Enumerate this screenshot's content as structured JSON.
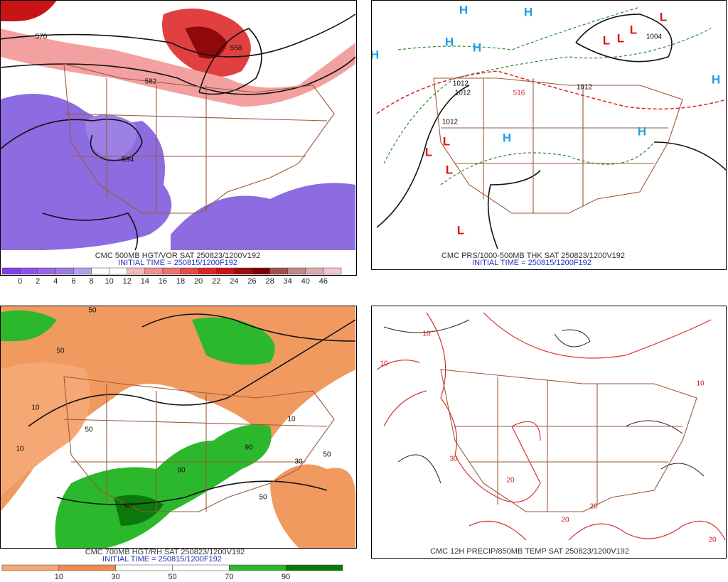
{
  "panels": [
    {
      "caption": "CMC 500MB HGT/VOR SAT 250823/1200V192",
      "initial_time": "INITIAL TIME = 250815/1200F192",
      "labels": [
        "570",
        "582",
        "594",
        "558"
      ],
      "colorbar": {
        "colors": [
          "#8a3cf0",
          "#9050ee",
          "#9866e4",
          "#a07ce0",
          "#b4a0e8",
          "#ffffff",
          "#ffffff",
          "#f6b8b8",
          "#f09090",
          "#ee7070",
          "#e84848",
          "#e02424",
          "#c81414",
          "#a00a0a",
          "#800000",
          "#a05050",
          "#c08888",
          "#dcaab0",
          "#f4c4d0"
        ],
        "labels": [
          "0",
          "2",
          "4",
          "6",
          "8",
          "10",
          "12",
          "14",
          "16",
          "18",
          "20",
          "22",
          "24",
          "26",
          "28",
          "34",
          "40",
          "46"
        ]
      }
    },
    {
      "caption": "CMC PRS/1000-500MB THK SAT 250823/1200V192",
      "initial_time": "INITIAL TIME = 250815/1200F192",
      "labels": [
        "H",
        "H",
        "H",
        "H",
        "H",
        "H",
        "H",
        "H",
        "L",
        "L",
        "L",
        "L",
        "L",
        "L",
        "L",
        "L",
        "1012",
        "1012",
        "1012",
        "1004",
        "1012",
        "516"
      ]
    },
    {
      "caption": "CMC 700MB HGT/RH SAT 250823/1200V192",
      "initial_time": "INITIAL TIME = 250815/1200F192",
      "labels": [
        "50",
        "50",
        "10",
        "10",
        "50",
        "90",
        "90",
        "50",
        "10",
        "50",
        "30",
        "90"
      ],
      "colorbar": {
        "colors": [
          "#f5a873",
          "#f08a4c",
          "#ffffff",
          "#ffffff",
          "#2cb82c",
          "#0a780a"
        ],
        "labels": [
          "10",
          "30",
          "50",
          "70",
          "90"
        ]
      }
    },
    {
      "caption": "CMC 12H PRECIP/850MB TEMP SAT 250823/1200V192",
      "labels": [
        "10",
        "10",
        "20",
        "20",
        "20",
        "30",
        "20",
        "10"
      ]
    }
  ]
}
